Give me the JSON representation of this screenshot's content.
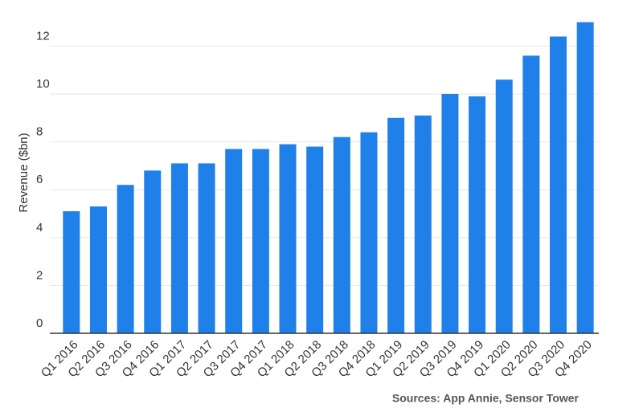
{
  "chart_data": {
    "type": "bar",
    "y_label": "Revenue ($bn)",
    "source": "Sources: App Annie, Sensor Tower",
    "categories": [
      "Q1 2016",
      "Q2 2016",
      "Q3 2016",
      "Q4 2016",
      "Q1 2017",
      "Q2 2017",
      "Q3 2017",
      "Q4 2017",
      "Q1 2018",
      "Q2 2018",
      "Q3 2018",
      "Q4 2018",
      "Q1 2019",
      "Q2 2019",
      "Q3 2019",
      "Q4 2019",
      "Q1 2020",
      "Q2 2020",
      "Q3 2020",
      "Q4 2020"
    ],
    "values": [
      5.1,
      5.3,
      6.2,
      6.8,
      7.1,
      7.1,
      7.7,
      7.7,
      7.9,
      7.8,
      8.2,
      8.4,
      9.0,
      9.1,
      10.0,
      9.9,
      10.6,
      11.6,
      12.4,
      13.0
    ],
    "color": "#1f80ea",
    "ylim": [
      0,
      13
    ],
    "yticks": [
      0,
      2,
      4,
      6,
      8,
      10,
      12
    ],
    "grid": true
  }
}
